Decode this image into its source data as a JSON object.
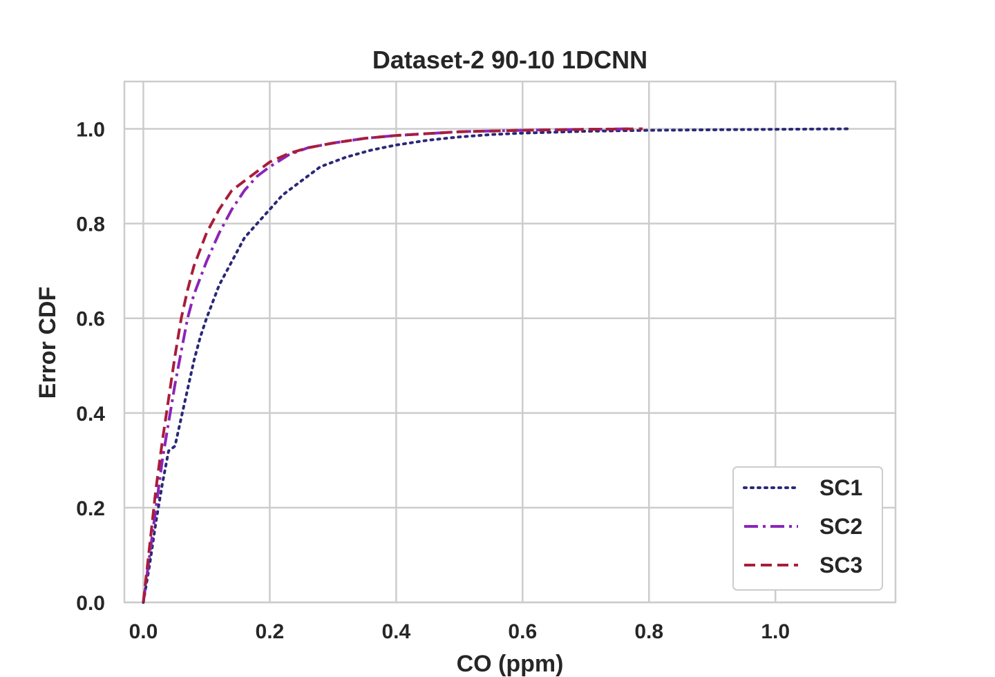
{
  "chart_data": {
    "type": "line",
    "title": "Dataset-2 90-10 1DCNN",
    "xlabel": "CO (ppm)",
    "ylabel": "Error CDF",
    "xlim": [
      -0.03,
      1.19
    ],
    "ylim": [
      0.0,
      1.1
    ],
    "xticks": [
      "0.0",
      "0.2",
      "0.4",
      "0.6",
      "0.8",
      "1.0"
    ],
    "xtick_values": [
      0.0,
      0.2,
      0.4,
      0.6,
      0.8,
      1.0
    ],
    "yticks": [
      "0.0",
      "0.2",
      "0.4",
      "0.6",
      "0.8",
      "1.0"
    ],
    "ytick_values": [
      0.0,
      0.2,
      0.4,
      0.6,
      0.8,
      1.0
    ],
    "grid": true,
    "legend_position": "lower-right",
    "series": [
      {
        "name": "SC1",
        "color": "#2a2878",
        "style": "dotted",
        "x": [
          0.0,
          0.01,
          0.02,
          0.03,
          0.04,
          0.05,
          0.06,
          0.07,
          0.08,
          0.09,
          0.1,
          0.12,
          0.14,
          0.16,
          0.18,
          0.2,
          0.22,
          0.25,
          0.28,
          0.32,
          0.36,
          0.4,
          0.45,
          0.5,
          0.55,
          0.6,
          0.7,
          0.8,
          0.9,
          1.0,
          1.12
        ],
        "y": [
          0.0,
          0.08,
          0.17,
          0.25,
          0.32,
          0.33,
          0.39,
          0.45,
          0.51,
          0.56,
          0.6,
          0.67,
          0.72,
          0.77,
          0.8,
          0.83,
          0.86,
          0.89,
          0.92,
          0.94,
          0.955,
          0.966,
          0.976,
          0.983,
          0.988,
          0.991,
          0.995,
          0.997,
          0.998,
          0.999,
          1.0
        ]
      },
      {
        "name": "SC2",
        "color": "#8a25b8",
        "style": "dashdot",
        "x": [
          0.0,
          0.01,
          0.02,
          0.03,
          0.04,
          0.05,
          0.06,
          0.07,
          0.08,
          0.1,
          0.12,
          0.14,
          0.16,
          0.18,
          0.2,
          0.23,
          0.26,
          0.3,
          0.35,
          0.4,
          0.45,
          0.5,
          0.6,
          0.7,
          0.77
        ],
        "y": [
          0.0,
          0.1,
          0.2,
          0.3,
          0.38,
          0.46,
          0.53,
          0.6,
          0.65,
          0.72,
          0.78,
          0.83,
          0.87,
          0.9,
          0.92,
          0.945,
          0.96,
          0.97,
          0.98,
          0.986,
          0.99,
          0.994,
          0.997,
          0.999,
          1.0
        ]
      },
      {
        "name": "SC3",
        "color": "#a81d3a",
        "style": "dashed",
        "x": [
          0.0,
          0.01,
          0.02,
          0.03,
          0.04,
          0.05,
          0.06,
          0.07,
          0.08,
          0.1,
          0.12,
          0.14,
          0.16,
          0.18,
          0.2,
          0.23,
          0.26,
          0.3,
          0.35,
          0.4,
          0.45,
          0.5,
          0.6,
          0.7,
          0.79
        ],
        "y": [
          0.0,
          0.12,
          0.24,
          0.34,
          0.43,
          0.52,
          0.6,
          0.66,
          0.71,
          0.78,
          0.83,
          0.87,
          0.89,
          0.91,
          0.93,
          0.948,
          0.96,
          0.97,
          0.98,
          0.986,
          0.99,
          0.994,
          0.997,
          0.999,
          1.0
        ]
      }
    ]
  }
}
